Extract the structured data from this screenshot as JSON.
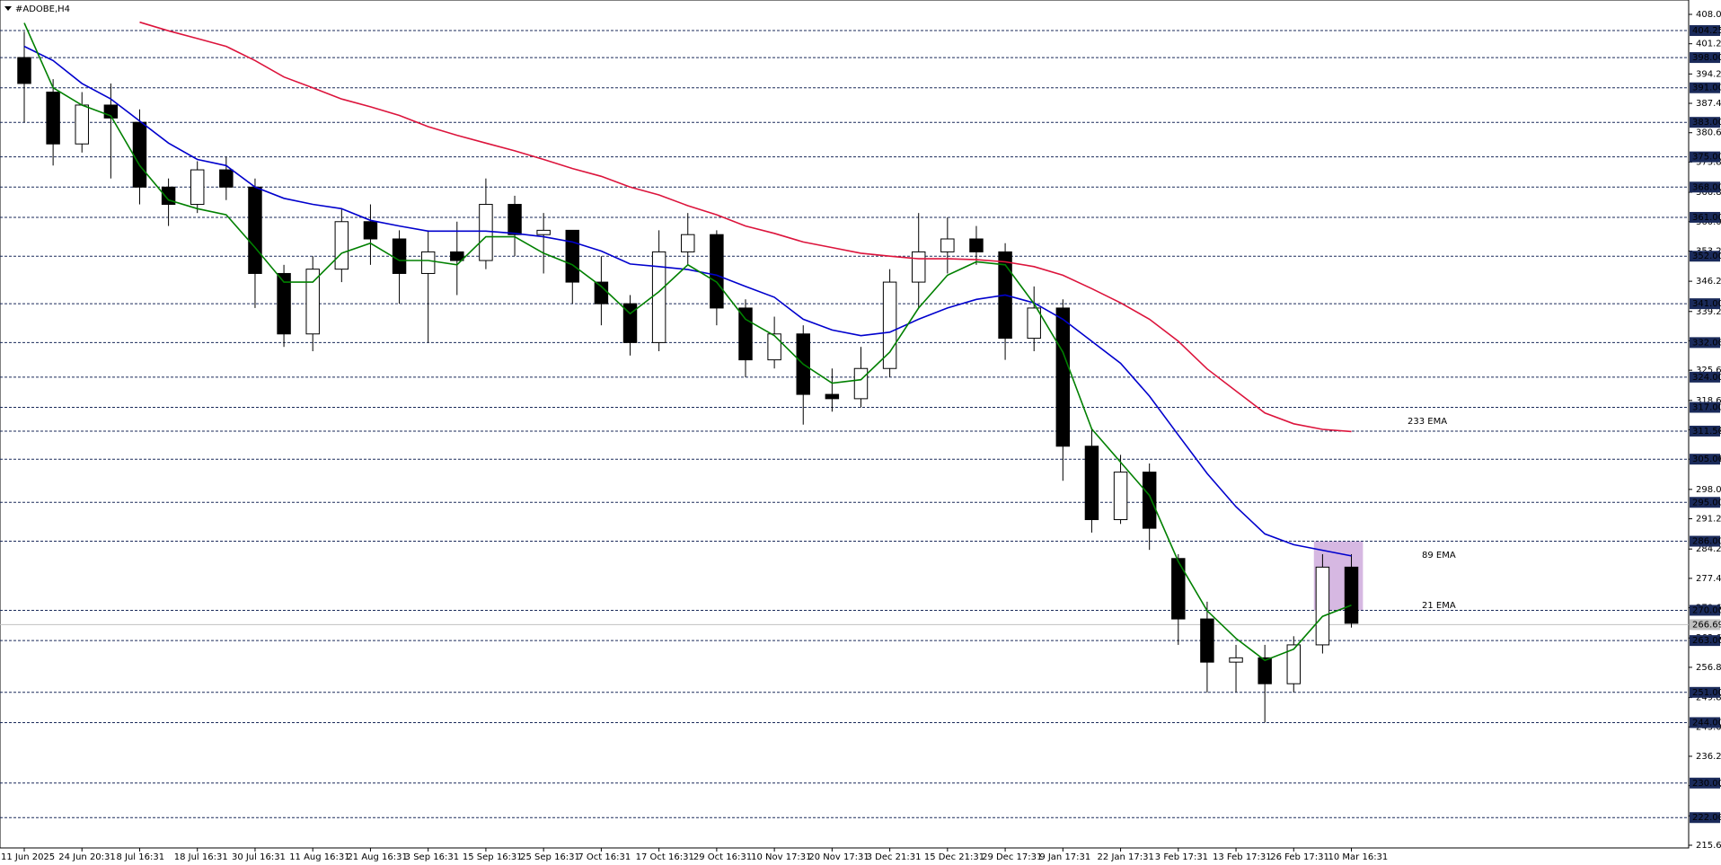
{
  "chart_data": {
    "type": "candlestick",
    "title": "#ADOBE,H4",
    "categories": [
      "11 Jun 2025",
      null,
      "24 Jun 20:31",
      null,
      "8 Jul 16:31",
      null,
      "18 Jul 16:31",
      null,
      "30 Jul 16:31",
      null,
      "11 Aug 16:31",
      null,
      "21 Aug 16:31",
      null,
      "3 Sep 16:31",
      null,
      "15 Sep 16:31",
      null,
      "25 Sep 16:31",
      null,
      "7 Oct 16:31",
      null,
      "17 Oct 16:31",
      null,
      "29 Oct 16:31",
      null,
      "10 Nov 17:31",
      null,
      "20 Nov 17:31",
      null,
      "3 Dec 21:31",
      null,
      "15 Dec 21:31",
      null,
      "29 Dec 17:31",
      null,
      "9 Jan 17:31",
      null,
      "22 Jan 17:31",
      null,
      "3 Feb 17:31",
      null,
      "13 Feb 17:31",
      null,
      "26 Feb 17:31",
      null,
      "10 Mar 16:31"
    ],
    "open": [
      398,
      390,
      378,
      387,
      383,
      368,
      364,
      372,
      368,
      348,
      334,
      349,
      360,
      356,
      348,
      353,
      351,
      364,
      357,
      358,
      346,
      341,
      332,
      353,
      357,
      340,
      328,
      334,
      320,
      319,
      326,
      346,
      353,
      356,
      353,
      333,
      340,
      308,
      291,
      302,
      282,
      268,
      258,
      259,
      253,
      262,
      280
    ],
    "high": [
      404,
      393,
      390,
      392,
      386,
      370,
      374,
      375,
      370,
      350,
      352,
      363,
      364,
      358,
      358,
      360,
      370,
      366,
      362,
      358,
      352,
      343,
      358,
      362,
      358,
      342,
      338,
      336,
      326,
      331,
      349,
      362,
      361,
      359,
      355,
      345,
      342,
      312,
      306,
      304,
      283,
      272,
      262,
      262,
      264,
      283,
      283
    ],
    "low": [
      383,
      373,
      376,
      370,
      364,
      359,
      362,
      365,
      340,
      331,
      330,
      346,
      350,
      341,
      332,
      343,
      349,
      352,
      348,
      341,
      336,
      329,
      330,
      350,
      336,
      324,
      326,
      313,
      316,
      317,
      324,
      340,
      348,
      350,
      328,
      330,
      300,
      288,
      290,
      284,
      262,
      251,
      251,
      244,
      251,
      260,
      266
    ],
    "close": [
      392,
      378,
      387,
      384,
      368,
      364,
      372,
      368,
      348,
      334,
      349,
      360,
      356,
      348,
      353,
      351,
      364,
      357,
      358,
      346,
      341,
      332,
      353,
      357,
      340,
      328,
      334,
      320,
      319,
      326,
      346,
      353,
      356,
      353,
      333,
      340,
      308,
      291,
      302,
      289,
      268,
      258,
      259,
      253,
      262,
      280,
      267
    ],
    "bull_color": "#ffffff",
    "bear_color": "#000000",
    "series": [
      {
        "name": "233 EMA",
        "color": "#dc143c",
        "values": [
          null,
          null,
          null,
          null,
          406.2,
          404.2,
          402.4,
          400.6,
          397.3,
          393.5,
          391,
          388.4,
          386.6,
          384.6,
          382,
          380,
          378.2,
          376.4,
          374.4,
          372.3,
          370.5,
          368,
          366.2,
          363.7,
          361.6,
          359,
          357.3,
          355.3,
          354,
          352.7,
          352,
          351.4,
          351.4,
          351.2,
          350.7,
          349.6,
          347.6,
          344.5,
          341.2,
          337.4,
          332.3,
          325.9,
          320.8,
          315.7,
          313.2,
          311.9,
          311.4
        ]
      },
      {
        "name": "89 EMA",
        "color": "#0000cd",
        "values": [
          400.6,
          397.3,
          392,
          388.4,
          383.3,
          378.2,
          374.4,
          373,
          368,
          365.4,
          364,
          363,
          360.3,
          359,
          357.8,
          357.8,
          357.8,
          357.3,
          356.5,
          355.3,
          353.2,
          350.2,
          349.6,
          348.9,
          347.6,
          345,
          342.5,
          337.4,
          334.9,
          333.6,
          334.4,
          337.4,
          340,
          342,
          343,
          341.2,
          337.4,
          332.3,
          327.2,
          319.6,
          310.6,
          301.7,
          294,
          287.7,
          285.2,
          283.9,
          282.6
        ]
      },
      {
        "name": "21 EMA",
        "color": "#008000",
        "values": [
          406,
          391,
          387,
          384.5,
          373,
          365,
          363,
          361.6,
          354,
          346,
          346,
          352.7,
          355,
          351,
          351,
          350,
          356.5,
          356.5,
          352.7,
          350,
          345,
          338.7,
          343.8,
          350,
          346,
          337.4,
          333.6,
          327,
          322.6,
          323.4,
          329.8,
          340,
          347.6,
          350.7,
          350,
          341,
          329.8,
          312,
          304.3,
          296.6,
          281.3,
          269.9,
          263.5,
          258.4,
          261,
          268.6,
          271.2
        ]
      }
    ],
    "ylim": [
      215.6,
      408
    ],
    "yticks": [
      {
        "value": 408,
        "label": "408.00"
      },
      {
        "value": 401.2,
        "label": "401.20"
      },
      {
        "value": 394.2,
        "label": "394.20"
      },
      {
        "value": 387.4,
        "label": "387.40"
      },
      {
        "value": 380.6,
        "label": "380.60"
      },
      {
        "value": 373.8,
        "label": "373.80"
      },
      {
        "value": 366.8,
        "label": "366.80"
      },
      {
        "value": 360,
        "label": "360.00"
      },
      {
        "value": 353.2,
        "label": "353.20"
      },
      {
        "value": 346.2,
        "label": "346.20"
      },
      {
        "value": 339.2,
        "label": "339.20"
      },
      {
        "value": 332.4,
        "label": "332.40"
      },
      {
        "value": 325.6,
        "label": "325.60"
      },
      {
        "value": 318.6,
        "label": "318.60"
      },
      {
        "value": 311.8,
        "label": "311.80"
      },
      {
        "value": 305,
        "label": "305.00"
      },
      {
        "value": 298,
        "label": "298.00"
      },
      {
        "value": 291.2,
        "label": "291.20"
      },
      {
        "value": 284.2,
        "label": "284.20"
      },
      {
        "value": 277.4,
        "label": "277.40"
      },
      {
        "value": 270.6,
        "label": "270.60"
      },
      {
        "value": 263.6,
        "label": "263.60"
      },
      {
        "value": 256.8,
        "label": "256.80"
      },
      {
        "value": 249.8,
        "label": "249.80"
      },
      {
        "value": 243,
        "label": "243.00"
      },
      {
        "value": 236.2,
        "label": "236.20"
      },
      {
        "value": 229.4,
        "label": "229.40"
      },
      {
        "value": 222.4,
        "label": "222.40"
      },
      {
        "value": 215.6,
        "label": "215.60"
      }
    ],
    "levels": [
      {
        "value": 404.25,
        "label": "404.25"
      },
      {
        "value": 398,
        "label": "398.00"
      },
      {
        "value": 391,
        "label": "391.00"
      },
      {
        "value": 383,
        "label": "383.00"
      },
      {
        "value": 375,
        "label": "375.00"
      },
      {
        "value": 368,
        "label": "368.00"
      },
      {
        "value": 361,
        "label": "361.00"
      },
      {
        "value": 352,
        "label": "352.00"
      },
      {
        "value": 341,
        "label": "341.00"
      },
      {
        "value": 332,
        "label": "332.00"
      },
      {
        "value": 324,
        "label": "324.00"
      },
      {
        "value": 317,
        "label": "317.00"
      },
      {
        "value": 311.5,
        "label": "311.50"
      },
      {
        "value": 305,
        "label": "305.00"
      },
      {
        "value": 295,
        "label": "295.00"
      },
      {
        "value": 286,
        "label": "286.00"
      },
      {
        "value": 270,
        "label": "270.00"
      },
      {
        "value": 263,
        "label": "263.00"
      },
      {
        "value": 251,
        "label": "251.00"
      },
      {
        "value": 244,
        "label": "244.00"
      },
      {
        "value": 230,
        "label": "230.00"
      },
      {
        "value": 222,
        "label": "222.00"
      }
    ],
    "level_color": "#1a2a5a",
    "current_price": {
      "value": 266.69,
      "label": "266.69"
    },
    "zone": {
      "ylim": [
        270,
        286
      ],
      "color": "#c8a0d8"
    }
  }
}
